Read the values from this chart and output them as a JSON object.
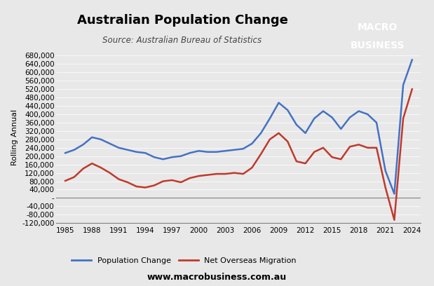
{
  "title": "Australian Population Change",
  "subtitle": "Source: Australian Bureau of Statistics",
  "ylabel": "Rolling Annual",
  "xlabel": "",
  "website": "www.macrobusiness.com.au",
  "logo_text1": "MACRO",
  "logo_text2": "BUSINESS",
  "logo_bg": "#cc0000",
  "logo_text_color": "#ffffff",
  "bg_color": "#e8e8e8",
  "plot_bg": "#e8e8e8",
  "ylim": [
    -120000,
    700000
  ],
  "yticks": [
    -120000,
    -80000,
    -40000,
    0,
    40000,
    80000,
    120000,
    160000,
    200000,
    240000,
    280000,
    320000,
    360000,
    400000,
    440000,
    480000,
    520000,
    560000,
    600000,
    640000,
    680000
  ],
  "xticks": [
    1985,
    1988,
    1991,
    1994,
    1997,
    2000,
    2003,
    2006,
    2009,
    2012,
    2015,
    2018,
    2021,
    2024
  ],
  "pop_color": "#4472c4",
  "nom_color": "#c0392b",
  "pop_x": [
    1985,
    1986,
    1987,
    1988,
    1989,
    1990,
    1991,
    1992,
    1993,
    1994,
    1995,
    1996,
    1997,
    1998,
    1999,
    2000,
    2001,
    2002,
    2003,
    2004,
    2005,
    2006,
    2007,
    2008,
    2009,
    2010,
    2011,
    2012,
    2013,
    2014,
    2015,
    2016,
    2017,
    2018,
    2019,
    2020,
    2021,
    2022,
    2023,
    2024
  ],
  "pop_y": [
    215000,
    230000,
    255000,
    290000,
    280000,
    260000,
    240000,
    230000,
    220000,
    215000,
    195000,
    185000,
    195000,
    200000,
    215000,
    225000,
    220000,
    220000,
    225000,
    230000,
    235000,
    260000,
    310000,
    380000,
    455000,
    420000,
    350000,
    310000,
    380000,
    415000,
    385000,
    330000,
    385000,
    415000,
    400000,
    360000,
    130000,
    20000,
    540000,
    660000
  ],
  "nom_x": [
    1985,
    1986,
    1987,
    1988,
    1989,
    1990,
    1991,
    1992,
    1993,
    1994,
    1995,
    1996,
    1997,
    1998,
    1999,
    2000,
    2001,
    2002,
    2003,
    2004,
    2005,
    2006,
    2007,
    2008,
    2009,
    2010,
    2011,
    2012,
    2013,
    2014,
    2015,
    2016,
    2017,
    2018,
    2019,
    2020,
    2021,
    2022,
    2023,
    2024
  ],
  "nom_y": [
    82000,
    100000,
    140000,
    165000,
    145000,
    120000,
    90000,
    75000,
    55000,
    50000,
    60000,
    80000,
    85000,
    75000,
    95000,
    105000,
    110000,
    115000,
    115000,
    120000,
    115000,
    145000,
    210000,
    280000,
    310000,
    270000,
    175000,
    165000,
    220000,
    240000,
    195000,
    185000,
    245000,
    255000,
    240000,
    240000,
    50000,
    -105000,
    380000,
    520000
  ]
}
